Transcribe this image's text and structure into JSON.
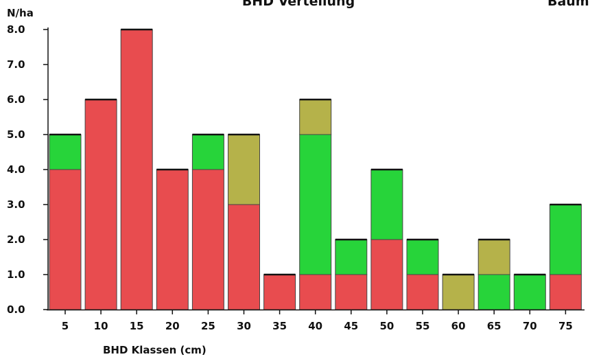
{
  "chart_data": {
    "type": "bar",
    "stacked": true,
    "title": "BHD Verteilung",
    "title_right": "Baum",
    "ylabel": "N/ha",
    "xlabel": "BHD Klassen (cm)",
    "ylim": [
      0,
      8
    ],
    "yticks": [
      "0.0",
      "1.0",
      "2.0",
      "3.0",
      "4.0",
      "5.0",
      "6.0",
      "7.0",
      "8.0"
    ],
    "grid": false,
    "categories": [
      "5",
      "10",
      "15",
      "20",
      "25",
      "30",
      "35",
      "40",
      "45",
      "50",
      "55",
      "60",
      "65",
      "70",
      "75"
    ],
    "series": [
      {
        "color": "#e84c4f",
        "values": [
          4,
          6,
          8,
          4,
          4,
          3,
          1,
          1,
          1,
          2,
          1,
          0,
          0,
          0,
          1
        ]
      },
      {
        "color": "#27d43a",
        "values": [
          1,
          0,
          0,
          0,
          1,
          0,
          0,
          4,
          1,
          2,
          1,
          0,
          1,
          1,
          2
        ]
      },
      {
        "color": "#b5b24a",
        "values": [
          0,
          0,
          0,
          0,
          0,
          2,
          0,
          1,
          0,
          0,
          0,
          1,
          1,
          0,
          0
        ]
      }
    ]
  }
}
